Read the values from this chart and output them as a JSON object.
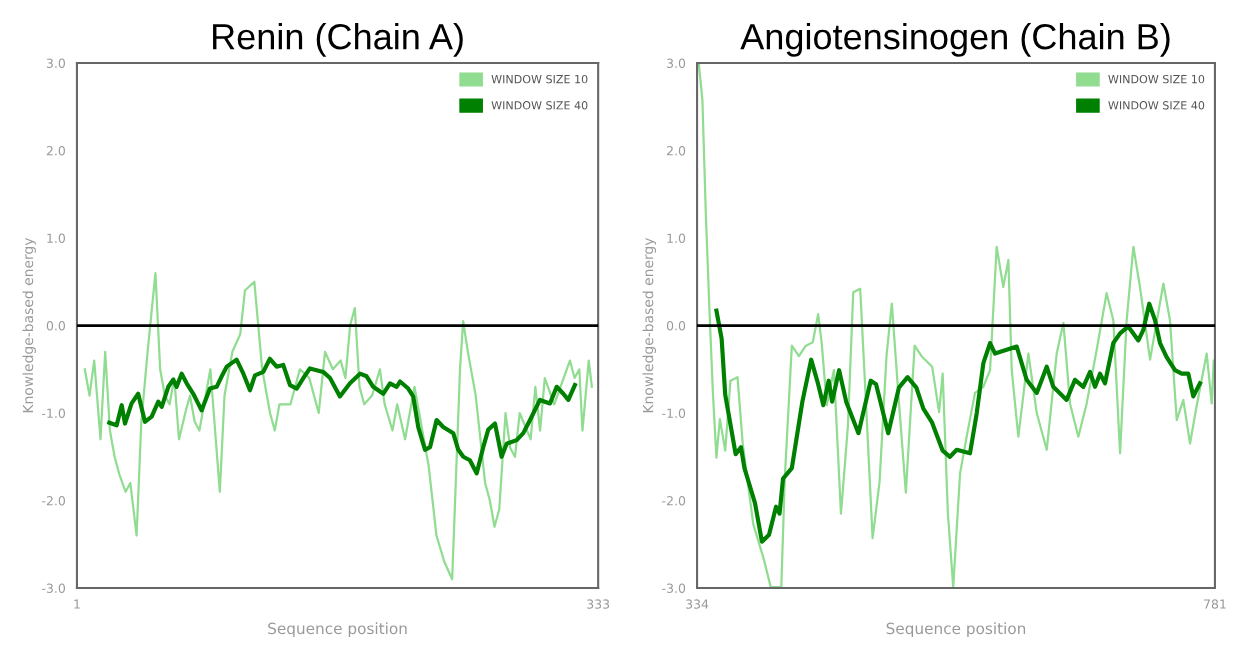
{
  "chart_data": [
    {
      "type": "line",
      "title": "Renin (Chain A)",
      "xlabel": "Sequence position",
      "ylabel": "Knowledge-based energy",
      "xlim": [
        1,
        333
      ],
      "xticks": [
        1,
        333
      ],
      "ylim": [
        -3,
        3
      ],
      "yticks": [
        {
          "value": -3,
          "label": "-3.0"
        },
        {
          "value": -2,
          "label": "-2.0"
        },
        {
          "value": -1,
          "label": "-1.0"
        },
        {
          "value": 0,
          "label": "0.0"
        },
        {
          "value": 1,
          "label": "1.0"
        },
        {
          "value": 2,
          "label": "2.0"
        },
        {
          "value": 3,
          "label": "3.0"
        }
      ],
      "grid": false,
      "legend": "top right",
      "marker": "none",
      "line_style": "solid",
      "ref_lines": [
        {
          "axis": "y",
          "value": 0,
          "color": "#000000"
        }
      ],
      "series": [
        {
          "name": "WINDOW SIZE 10",
          "color": "#90dc90",
          "x": [
            6,
            9,
            12,
            16,
            19,
            22,
            25,
            28,
            32,
            35,
            39,
            42,
            46,
            51,
            54,
            57,
            60,
            63,
            66,
            70,
            73,
            76,
            79,
            86,
            92,
            95,
            100,
            105,
            108,
            114,
            119,
            124,
            127,
            130,
            137,
            143,
            149,
            155,
            159,
            164,
            169,
            172,
            175,
            178,
            181,
            184,
            189,
            194,
            197,
            202,
            205,
            210,
            216,
            219,
            225,
            230,
            235,
            240,
            245,
            247,
            250,
            255,
            258,
            261,
            264,
            267,
            270,
            274,
            277,
            280,
            283,
            290,
            293,
            296,
            299,
            305,
            309,
            315,
            318,
            321,
            323,
            327,
            329
          ],
          "values": [
            -0.5,
            -0.8,
            -0.4,
            -1.3,
            -0.3,
            -1.2,
            -1.5,
            -1.7,
            -1.9,
            -1.8,
            -2.4,
            -1.1,
            -0.3,
            0.6,
            -0.5,
            -0.8,
            -0.9,
            -0.6,
            -1.3,
            -1.0,
            -0.8,
            -1.1,
            -1.2,
            -0.5,
            -1.9,
            -0.8,
            -0.3,
            -0.1,
            0.4,
            0.5,
            -0.5,
            -1.0,
            -1.2,
            -0.9,
            -0.9,
            -0.5,
            -0.6,
            -1.0,
            -0.3,
            -0.5,
            -0.4,
            -0.6,
            0.0,
            0.2,
            -0.7,
            -0.9,
            -0.8,
            -0.5,
            -0.9,
            -1.2,
            -0.9,
            -1.3,
            -0.7,
            -1.0,
            -1.6,
            -2.4,
            -2.7,
            -2.9,
            -0.5,
            0.05,
            -0.3,
            -0.8,
            -1.3,
            -1.8,
            -2.0,
            -2.3,
            -2.1,
            -1.0,
            -1.4,
            -1.5,
            -1.0,
            -1.3,
            -0.7,
            -1.2,
            -0.6,
            -0.9,
            -0.7,
            -0.4,
            -0.6,
            -0.5,
            -1.2,
            -0.4,
            -0.7
          ]
        },
        {
          "name": "WINDOW SIZE 40",
          "color": "#008000",
          "x": [
            21.6,
            26.3,
            29.5,
            31.6,
            35.8,
            40,
            44.3,
            48.6,
            52.8,
            55,
            59.2,
            62.3,
            64.5,
            67.7,
            70.9,
            75.1,
            80.4,
            85.7,
            90,
            93.2,
            96.4,
            102.7,
            107,
            111.2,
            114.4,
            119.7,
            123.9,
            128.2,
            132.4,
            136.7,
            141,
            145.2,
            149.4,
            157.9,
            162.2,
            168.5,
            174.9,
            181.3,
            185.5,
            189.7,
            196.1,
            200.4,
            204.6,
            206.8,
            212,
            215.2,
            218.4,
            222.7,
            225.9,
            230.1,
            234.3,
            240.7,
            243.9,
            247.1,
            251.3,
            255.6,
            259.8,
            263,
            267.3,
            271.5,
            274.7,
            281.1,
            285.3,
            289.6,
            295.9,
            302.3,
            306.6,
            310.8,
            314,
            318.2
          ],
          "values": [
            -1.11,
            -1.14,
            -0.91,
            -1.12,
            -0.89,
            -0.78,
            -1.1,
            -1.04,
            -0.87,
            -0.93,
            -0.7,
            -0.62,
            -0.7,
            -0.55,
            -0.66,
            -0.78,
            -0.97,
            -0.72,
            -0.7,
            -0.58,
            -0.47,
            -0.39,
            -0.55,
            -0.74,
            -0.57,
            -0.53,
            -0.38,
            -0.47,
            -0.45,
            -0.68,
            -0.72,
            -0.6,
            -0.49,
            -0.53,
            -0.6,
            -0.81,
            -0.66,
            -0.55,
            -0.58,
            -0.7,
            -0.78,
            -0.66,
            -0.7,
            -0.64,
            -0.72,
            -0.81,
            -1.16,
            -1.42,
            -1.39,
            -1.08,
            -1.16,
            -1.23,
            -1.42,
            -1.5,
            -1.54,
            -1.69,
            -1.39,
            -1.19,
            -1.12,
            -1.5,
            -1.35,
            -1.31,
            -1.23,
            -1.08,
            -0.85,
            -0.89,
            -0.7,
            -0.78,
            -0.85,
            -0.68
          ]
        }
      ]
    },
    {
      "type": "line",
      "title": "Angiotensinogen (Chain B)",
      "xlabel": "Sequence position",
      "ylabel": "Knowledge-based energy",
      "xlim": [
        334,
        781
      ],
      "xticks": [
        334,
        781
      ],
      "ylim": [
        -3,
        3
      ],
      "yticks": [
        {
          "value": -3,
          "label": "-3.0"
        },
        {
          "value": -2,
          "label": "-2.0"
        },
        {
          "value": -1,
          "label": "-1.0"
        },
        {
          "value": 0,
          "label": "0.0"
        },
        {
          "value": 1,
          "label": "1.0"
        },
        {
          "value": 2,
          "label": "2.0"
        },
        {
          "value": 3,
          "label": "3.0"
        }
      ],
      "grid": false,
      "legend": "top right",
      "marker": "none",
      "line_style": "solid",
      "ref_lines": [
        {
          "axis": "y",
          "value": 0,
          "color": "#000000"
        }
      ],
      "series": [
        {
          "name": "WINDOW SIZE 10",
          "color": "#90dc90",
          "x": [
            335.6,
            338.6,
            341.6,
            344.6,
            347.6,
            350.7,
            353.7,
            358.3,
            362.8,
            368.9,
            373.4,
            382.5,
            391.6,
            397.6,
            406.7,
            409.7,
            415.8,
            421.9,
            427.9,
            433.9,
            438.5,
            441.5,
            446,
            452.1,
            458.2,
            464.2,
            468.8,
            474.8,
            479.3,
            485.5,
            491.5,
            497.5,
            502.1,
            508.2,
            514.2,
            521.8,
            527.8,
            536.9,
            542.9,
            546,
            550.5,
            555.1,
            561,
            566.7,
            573.9,
            581.1,
            586.9,
            592.6,
            598.3,
            602.7,
            605.6,
            611.3,
            620,
            627.2,
            635.8,
            644.4,
            650.2,
            655.9,
            663.1,
            670.3,
            678.9,
            687.5,
            693.3,
            699.1,
            704.8,
            710.6,
            716.3,
            725,
            736.5,
            742.2,
            748,
            753.7,
            759.5,
            765.2,
            773.9,
            778.2,
            780
          ],
          "values": [
            2.98,
            2.58,
            1.26,
            0.21,
            -0.75,
            -1.51,
            -1.07,
            -1.43,
            -0.63,
            -0.59,
            -1.35,
            -2.27,
            -2.67,
            -2.99,
            -2.99,
            -1.75,
            -0.23,
            -0.35,
            -0.23,
            -0.19,
            0.13,
            -0.19,
            -0.91,
            -0.51,
            -2.15,
            -1.15,
            0.38,
            0.42,
            -0.75,
            -2.43,
            -1.79,
            -0.35,
            0.25,
            -0.87,
            -1.91,
            -0.23,
            -0.35,
            -0.47,
            -0.99,
            -0.55,
            -2.15,
            -2.99,
            -1.69,
            -1.27,
            -0.77,
            -0.7,
            -0.51,
            0.9,
            0.44,
            0.75,
            -0.51,
            -1.27,
            -0.32,
            -1.0,
            -1.42,
            -0.32,
            0.03,
            -0.89,
            -1.27,
            -0.89,
            -0.28,
            0.37,
            0.06,
            -1.46,
            0.06,
            0.9,
            0.44,
            -0.39,
            0.48,
            0.06,
            -1.08,
            -0.85,
            -1.35,
            -0.92,
            -0.32,
            -0.89,
            -0.4
          ]
        },
        {
          "name": "WINDOW SIZE 40",
          "color": "#008000",
          "x": [
            350.7,
            355.2,
            358.3,
            367.3,
            371.9,
            374.9,
            384,
            390,
            396.1,
            402.2,
            405.2,
            408.2,
            415.8,
            424.9,
            432.5,
            438.5,
            443,
            447.6,
            450.6,
            456.6,
            462.7,
            473.3,
            483.9,
            488.5,
            499,
            508.2,
            515.7,
            523.3,
            529.3,
            536.9,
            546,
            552.3,
            558.1,
            569.6,
            575.4,
            581.1,
            586.9,
            591.2,
            609.9,
            618.5,
            627.2,
            635.8,
            641.5,
            653,
            660.2,
            667.4,
            673.2,
            677.5,
            681.8,
            686.1,
            693.3,
            699.1,
            706.2,
            714.9,
            719.2,
            724.3,
            729.3,
            733.6,
            739.3,
            746.5,
            752.3,
            758,
            762.3,
            768.1
          ],
          "values": [
            0.17,
            -0.15,
            -0.79,
            -1.47,
            -1.39,
            -1.63,
            -2.03,
            -2.47,
            -2.39,
            -2.07,
            -2.15,
            -1.75,
            -1.63,
            -0.87,
            -0.39,
            -0.67,
            -0.91,
            -0.63,
            -0.87,
            -0.51,
            -0.87,
            -1.23,
            -0.63,
            -0.67,
            -1.23,
            -0.71,
            -0.59,
            -0.71,
            -0.95,
            -1.11,
            -1.43,
            -1.5,
            -1.42,
            -1.46,
            -1.0,
            -0.43,
            -0.2,
            -0.32,
            -0.24,
            -0.62,
            -0.77,
            -0.47,
            -0.7,
            -0.85,
            -0.62,
            -0.7,
            -0.53,
            -0.7,
            -0.55,
            -0.66,
            -0.2,
            -0.09,
            -0.01,
            -0.17,
            -0.05,
            0.25,
            0.06,
            -0.2,
            -0.36,
            -0.51,
            -0.55,
            -0.55,
            -0.81,
            -0.66
          ]
        }
      ]
    }
  ]
}
